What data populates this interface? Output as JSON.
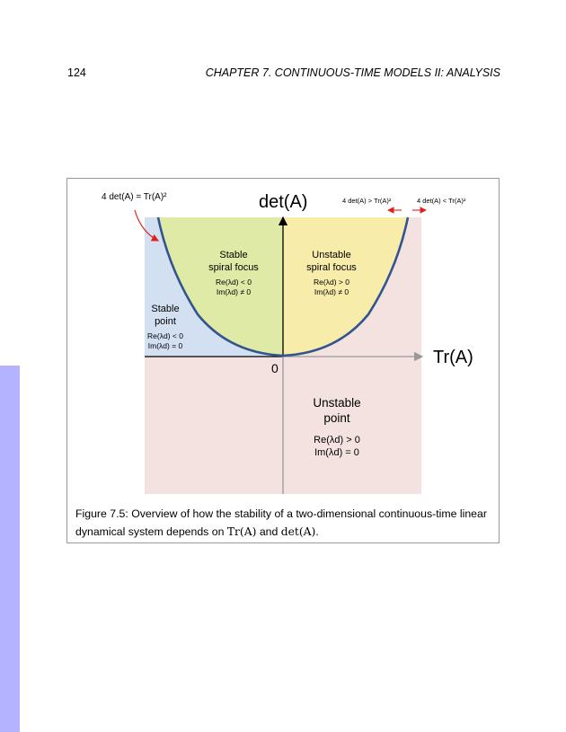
{
  "header": {
    "page_number": "124",
    "chapter": "CHAPTER 7.  CONTINUOUS-TIME MODELS II: ANALYSIS"
  },
  "figure": {
    "axis_y": "det(A)",
    "axis_x": "Tr(A)",
    "origin": "0",
    "curve_label": "4 det(A) = Tr(A)²",
    "left_note": "4 det(A) > Tr(A)²",
    "right_note": "4 det(A) < Tr(A)²",
    "regions": {
      "stable_spiral": {
        "title1": "Stable",
        "title2": "spiral focus",
        "re": "Re(λd) < 0",
        "im": "Im(λd) ≠ 0"
      },
      "unstable_spiral": {
        "title1": "Unstable",
        "title2": "spiral focus",
        "re": "Re(λd) > 0",
        "im": "Im(λd) ≠ 0"
      },
      "stable_point": {
        "title1": "Stable",
        "title2": "point",
        "re": "Re(λd) < 0",
        "im": "Im(λd) = 0"
      },
      "unstable_point": {
        "title1": "Unstable",
        "title2": "point",
        "re": "Re(λd) > 0",
        "im": "Im(λd) = 0"
      }
    },
    "colors": {
      "stable_point": "#d3e0f2",
      "stable_spiral": "#dfeaa6",
      "unstable_spiral": "#f8ecab",
      "unstable_point": "#f4e2e1",
      "curve": "#33558f",
      "arrow_red": "#e0201c"
    }
  },
  "caption": {
    "prefix": "Figure 7.5: Overview of how the stability of a two-dimensional continuous-time linear dynamical system depends on ",
    "tr": "Tr(A)",
    "and": " and ",
    "det": "det(A)",
    "end": "."
  }
}
